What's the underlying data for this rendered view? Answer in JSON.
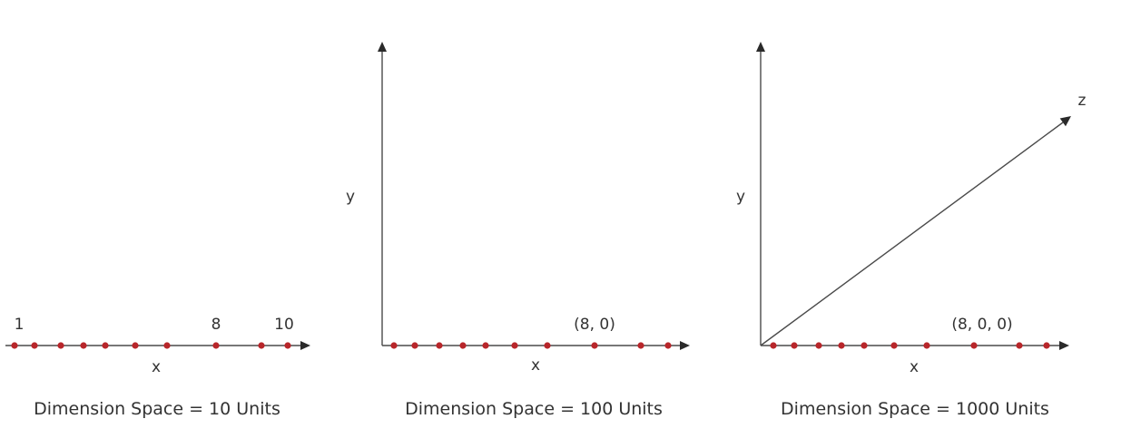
{
  "diagram": {
    "colors": {
      "axis": "#4a4a4a",
      "point": "#b8262a",
      "text": "#333333"
    },
    "panels": [
      {
        "id": "1d",
        "x_label": "x",
        "caption": "Dimension Space = 10 Units",
        "point_labels": [
          "1",
          "8",
          "10"
        ]
      },
      {
        "id": "2d",
        "x_label": "x",
        "y_label": "y",
        "caption": "Dimension Space = 100 Units",
        "coordinate_label": "(8, 0)"
      },
      {
        "id": "3d",
        "x_label": "x",
        "y_label": "y",
        "z_label": "z",
        "caption": "Dimension Space = 1000 Units",
        "coordinate_label": "(8, 0, 0)"
      }
    ]
  }
}
